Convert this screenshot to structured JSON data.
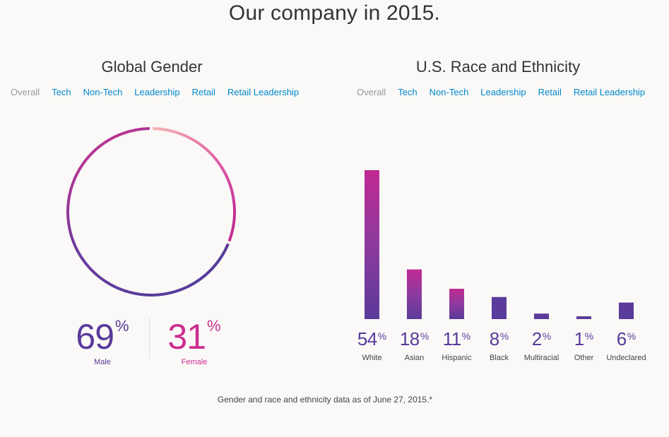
{
  "page": {
    "title": "Our company in 2015.",
    "footnote": "Gender and race and ethnicity data as of June 27, 2015.*"
  },
  "colors": {
    "male": "#5a3a9a",
    "female": "#cc2e8f",
    "link": "#0088cc",
    "muted": "#999999"
  },
  "gender": {
    "title": "Global Gender",
    "tabs": [
      "Overall",
      "Tech",
      "Non-Tech",
      "Leadership",
      "Retail",
      "Retail Leadership"
    ],
    "active_tab": "Overall",
    "male": {
      "value": "69",
      "unit": "%",
      "label": "Male"
    },
    "female": {
      "value": "31",
      "unit": "%",
      "label": "Female"
    }
  },
  "race": {
    "title": "U.S. Race and Ethnicity",
    "tabs": [
      "Overall",
      "Tech",
      "Non-Tech",
      "Leadership",
      "Retail",
      "Retail Leadership"
    ],
    "active_tab": "Overall"
  },
  "chart_data": [
    {
      "type": "pie",
      "title": "Global Gender",
      "categories": [
        "Male",
        "Female"
      ],
      "values": [
        69,
        31
      ],
      "unit": "%"
    },
    {
      "type": "bar",
      "title": "U.S. Race and Ethnicity",
      "categories": [
        "White",
        "Asian",
        "Hispanic",
        "Black",
        "Multiracial",
        "Other",
        "Undeclared"
      ],
      "values": [
        54,
        18,
        11,
        8,
        2,
        1,
        6
      ],
      "unit": "%",
      "ylim": [
        0,
        54
      ]
    }
  ]
}
